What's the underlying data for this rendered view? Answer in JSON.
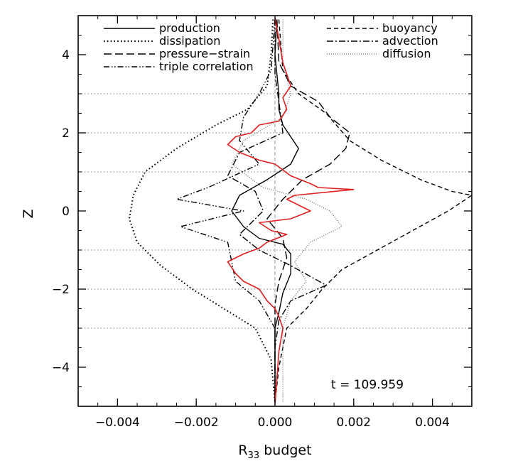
{
  "chart_data": {
    "type": "line",
    "title": "",
    "xlabel_main": "R",
    "xlabel_sub": "33",
    "xlabel_rest": " budget",
    "ylabel": "Z",
    "xlim": [
      -0.005,
      0.005
    ],
    "ylim": [
      -5,
      5
    ],
    "x_ticks": [
      {
        "value": -0.004,
        "label": "−0.004"
      },
      {
        "value": -0.002,
        "label": "−0.002"
      },
      {
        "value": 0.0,
        "label": "0.000"
      },
      {
        "value": 0.002,
        "label": "0.002"
      },
      {
        "value": 0.004,
        "label": "0.004"
      }
    ],
    "y_ticks": [
      {
        "value": -4,
        "label": "−4"
      },
      {
        "value": -2,
        "label": "−2"
      },
      {
        "value": 0,
        "label": "0"
      },
      {
        "value": 2,
        "label": "2"
      },
      {
        "value": 4,
        "label": "4"
      }
    ],
    "reference_lines_y": [
      -3,
      -1,
      1,
      3,
      -2,
      2
    ],
    "annotation": "t  =  109.959",
    "legend_placement": "top",
    "series": [
      {
        "name": "production",
        "style": "solid",
        "color": "#000000",
        "points": [
          [
            5e-05,
            4.9
          ],
          [
            0.0,
            4.0
          ],
          [
            0.0001,
            3.0
          ],
          [
            0.0001,
            2.6
          ],
          [
            0.0002,
            2.2
          ],
          [
            0.0006,
            1.6
          ],
          [
            0.0004,
            1.2
          ],
          [
            -0.0002,
            0.8
          ],
          [
            -0.0009,
            0.4
          ],
          [
            -0.0011,
            0.0
          ],
          [
            -0.0008,
            -0.4
          ],
          [
            -0.0004,
            -0.7
          ],
          [
            0.0002,
            -0.85
          ],
          [
            0.0004,
            -1.1
          ],
          [
            0.0004,
            -1.6
          ],
          [
            0.0002,
            -2.1
          ],
          [
            0.0001,
            -2.6
          ],
          [
            0.0,
            -3.0
          ],
          [
            0.0,
            -4.0
          ],
          [
            0.0,
            -4.9
          ]
        ]
      },
      {
        "name": "dissipation",
        "style": "dotted",
        "color": "#000000",
        "points": [
          [
            -5e-05,
            4.9
          ],
          [
            -0.0001,
            4.0
          ],
          [
            -0.0002,
            3.2
          ],
          [
            -0.0007,
            2.6
          ],
          [
            -0.0015,
            2.2
          ],
          [
            -0.0025,
            1.6
          ],
          [
            -0.0033,
            1.0
          ],
          [
            -0.0036,
            0.4
          ],
          [
            -0.0037,
            -0.2
          ],
          [
            -0.0035,
            -0.8
          ],
          [
            -0.0029,
            -1.4
          ],
          [
            -0.0021,
            -2.0
          ],
          [
            -0.0013,
            -2.5
          ],
          [
            -0.0005,
            -3.0
          ],
          [
            -0.0001,
            -3.8
          ],
          [
            0.0,
            -4.9
          ]
        ]
      },
      {
        "name": "pressure−strain",
        "style": "longdash",
        "color": "#000000",
        "points": [
          [
            5e-05,
            4.9
          ],
          [
            0.0001,
            3.8
          ],
          [
            0.0004,
            3.2
          ],
          [
            0.0011,
            2.8
          ],
          [
            0.0014,
            2.4
          ],
          [
            0.0019,
            2.0
          ],
          [
            0.0018,
            1.6
          ],
          [
            0.0014,
            1.2
          ],
          [
            0.0007,
            0.8
          ],
          [
            0.0002,
            0.3
          ],
          [
            -0.0002,
            -0.2
          ],
          [
            0.0002,
            -0.7
          ],
          [
            0.0003,
            -1.2
          ],
          [
            0.0001,
            -1.8
          ],
          [
            0.0,
            -2.4
          ],
          [
            0.0,
            -3.0
          ],
          [
            0.0,
            -4.9
          ]
        ]
      },
      {
        "name": "triple correlation",
        "style": "dashdotdot",
        "color": "#000000",
        "points": [
          [
            0.0,
            4.9
          ],
          [
            -0.0001,
            3.6
          ],
          [
            -0.0004,
            3.0
          ],
          [
            -0.0008,
            2.4
          ],
          [
            -0.0009,
            1.8
          ],
          [
            -0.0004,
            1.2
          ],
          [
            -0.0017,
            0.6
          ],
          [
            -0.0025,
            0.3
          ],
          [
            -0.0008,
            0.0
          ],
          [
            -0.0024,
            -0.4
          ],
          [
            -0.0012,
            -0.8
          ],
          [
            -0.0011,
            -1.3
          ],
          [
            -0.001,
            -1.8
          ],
          [
            -0.0004,
            -2.3
          ],
          [
            0.0,
            -3.0
          ],
          [
            0.0,
            -4.9
          ]
        ]
      },
      {
        "name": "buoyancy",
        "style": "dashed",
        "color": "#000000",
        "points": [
          [
            0.0001,
            4.9
          ],
          [
            0.0002,
            3.6
          ],
          [
            0.0006,
            3.0
          ],
          [
            0.0013,
            2.5
          ],
          [
            0.0019,
            1.8
          ],
          [
            0.0027,
            1.3
          ],
          [
            0.0037,
            0.8
          ],
          [
            0.0045,
            0.5
          ],
          [
            0.005,
            0.4
          ],
          [
            0.0044,
            0.0
          ],
          [
            0.0035,
            -0.5
          ],
          [
            0.0026,
            -1.0
          ],
          [
            0.0017,
            -1.5
          ],
          [
            0.0012,
            -2.0
          ],
          [
            0.0008,
            -2.5
          ],
          [
            0.0003,
            -3.0
          ],
          [
            0.0001,
            -4.0
          ],
          [
            0.0,
            -4.9
          ]
        ]
      },
      {
        "name": "advection",
        "style": "dashdot",
        "color": "#000000",
        "points": [
          [
            0.0,
            4.9
          ],
          [
            0.0,
            3.5
          ],
          [
            0.0001,
            2.8
          ],
          [
            0.0002,
            2.0
          ],
          [
            -0.0009,
            1.5
          ],
          [
            -0.0012,
            0.9
          ],
          [
            -0.0005,
            0.5
          ],
          [
            -0.0003,
            0.0
          ],
          [
            -0.0009,
            -0.6
          ],
          [
            -0.0004,
            -1.0
          ],
          [
            0.0004,
            -1.4
          ],
          [
            0.0013,
            -1.9
          ],
          [
            0.0004,
            -2.3
          ],
          [
            0.0001,
            -2.8
          ],
          [
            0.0,
            -3.5
          ],
          [
            0.0,
            -4.9
          ]
        ]
      },
      {
        "name": "diffusion",
        "style": "finedot",
        "color": "#7a7a7a",
        "points": [
          [
            0.0002,
            4.9
          ],
          [
            0.0002,
            3.8
          ],
          [
            0.0004,
            3.0
          ],
          [
            0.0002,
            2.4
          ],
          [
            -0.0008,
            1.8
          ],
          [
            -0.0011,
            1.2
          ],
          [
            -0.0003,
            0.6
          ],
          [
            0.0008,
            0.3
          ],
          [
            0.0014,
            0.0
          ],
          [
            0.0017,
            -0.4
          ],
          [
            0.0009,
            -0.8
          ],
          [
            0.0005,
            -1.3
          ],
          [
            0.0008,
            -1.8
          ],
          [
            0.0004,
            -2.3
          ],
          [
            0.0002,
            -3.0
          ],
          [
            0.0002,
            -4.0
          ],
          [
            0.0002,
            -4.9
          ]
        ]
      }
    ],
    "total": {
      "style": "solid",
      "color": "#e02020",
      "points": [
        [
          0.0,
          4.95
        ],
        [
          0.0001,
          4.4
        ],
        [
          0.0002,
          3.8
        ],
        [
          0.0004,
          3.2
        ],
        [
          0.0002,
          2.9
        ],
        [
          0.0003,
          2.6
        ],
        [
          0.0001,
          2.3
        ],
        [
          -0.0004,
          2.2
        ],
        [
          -0.0006,
          2.0
        ],
        [
          -0.001,
          1.9
        ],
        [
          -0.0012,
          1.7
        ],
        [
          -0.0009,
          1.5
        ],
        [
          -0.0004,
          1.3
        ],
        [
          0.0,
          1.2
        ],
        [
          0.0004,
          0.9
        ],
        [
          0.0009,
          0.7
        ],
        [
          0.0011,
          0.6
        ],
        [
          0.002,
          0.55
        ],
        [
          0.0005,
          0.4
        ],
        [
          0.0003,
          0.3
        ],
        [
          0.0007,
          0.1
        ],
        [
          0.0009,
          0.0
        ],
        [
          0.0004,
          -0.2
        ],
        [
          -0.0004,
          -0.3
        ],
        [
          -0.0001,
          -0.5
        ],
        [
          0.0003,
          -0.6
        ],
        [
          -0.0002,
          -0.8
        ],
        [
          -0.0004,
          -0.95
        ],
        [
          -0.0008,
          -1.1
        ],
        [
          -0.0012,
          -1.3
        ],
        [
          -0.001,
          -1.6
        ],
        [
          -0.0008,
          -1.8
        ],
        [
          -0.0004,
          -2.0
        ],
        [
          -0.0002,
          -2.3
        ],
        [
          0.0,
          -2.5
        ],
        [
          0.0001,
          -2.7
        ],
        [
          0.0002,
          -3.0
        ],
        [
          0.0001,
          -3.6
        ],
        [
          0.0,
          -4.95
        ]
      ]
    }
  }
}
